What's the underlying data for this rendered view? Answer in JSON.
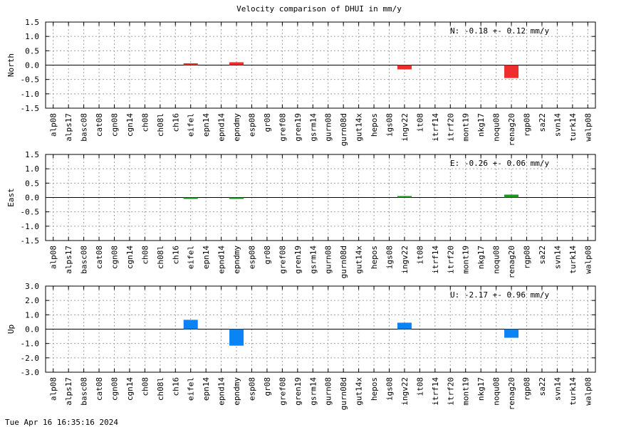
{
  "title": "Velocity comparison of DHUI in mm/y",
  "timestamp": "Tue Apr 16 16:35:16 2024",
  "chart_data": {
    "type": "bar",
    "categories": [
      "alp08",
      "alps17",
      "basc08",
      "cat08",
      "cgn08",
      "cgn14",
      "ch08",
      "ch08l",
      "ch16",
      "eifel",
      "epn14",
      "epnd14",
      "epndmy",
      "esp08",
      "gr08",
      "gref08",
      "gren19",
      "gsrm14",
      "gurn08",
      "gurn08d",
      "gut14x",
      "hepos",
      "igs08",
      "ingv22",
      "it08",
      "itrf14",
      "itrf20",
      "mont19",
      "nkg17",
      "noqu08",
      "renag20",
      "rgp08",
      "sa22",
      "svn14",
      "turk14",
      "walp08"
    ],
    "panels": [
      {
        "component": "North",
        "ylabel": "North",
        "color": "#ee2d2d",
        "ylim": [
          -1.5,
          1.5
        ],
        "yticks": [
          "1.5",
          "1.0",
          "0.5",
          "0.0",
          "-0.5",
          "-1.0",
          "-1.5"
        ],
        "annotation": "N:  -0.18 +-  0.12 mm/y",
        "values": [
          null,
          null,
          null,
          null,
          null,
          null,
          null,
          null,
          null,
          0.02,
          null,
          null,
          0.1,
          null,
          null,
          null,
          null,
          null,
          null,
          null,
          null,
          null,
          null,
          -0.15,
          null,
          null,
          null,
          null,
          null,
          null,
          -0.45,
          null,
          null,
          null,
          null,
          null
        ]
      },
      {
        "component": "East",
        "ylabel": "East",
        "color": "#1a9a1a",
        "ylim": [
          -1.5,
          1.5
        ],
        "yticks": [
          "1.5",
          "1.0",
          "0.5",
          "0.0",
          "-0.5",
          "-1.0",
          "-1.5"
        ],
        "annotation": "E:  -0.26 +-  0.06 mm/y",
        "values": [
          null,
          null,
          null,
          null,
          null,
          null,
          null,
          null,
          null,
          -0.05,
          null,
          null,
          -0.05,
          null,
          null,
          null,
          null,
          null,
          null,
          null,
          null,
          null,
          null,
          0.05,
          null,
          null,
          null,
          null,
          null,
          null,
          0.1,
          null,
          null,
          null,
          null,
          null
        ]
      },
      {
        "component": "Up",
        "ylabel": "Up",
        "color": "#0a84f5",
        "ylim": [
          -3.0,
          3.0
        ],
        "yticks": [
          "3.0",
          "2.0",
          "1.0",
          "0.0",
          "-1.0",
          "-2.0",
          "-3.0"
        ],
        "annotation": "U:  -2.17 +-  0.96 mm/y",
        "values": [
          null,
          null,
          null,
          null,
          null,
          null,
          null,
          null,
          null,
          0.65,
          null,
          null,
          -1.15,
          null,
          null,
          null,
          null,
          null,
          null,
          null,
          null,
          null,
          null,
          0.45,
          null,
          null,
          null,
          null,
          null,
          null,
          -0.6,
          null,
          null,
          null,
          null,
          null
        ]
      }
    ],
    "grid": true
  }
}
